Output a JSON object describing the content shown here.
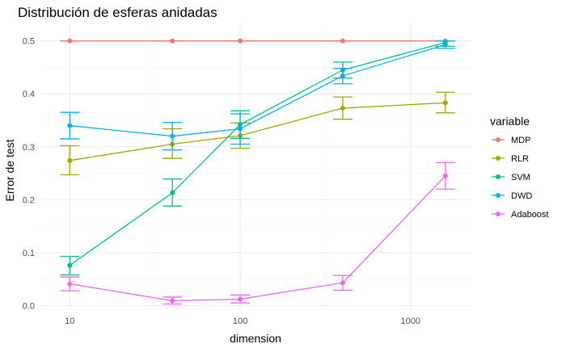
{
  "chart_data": {
    "type": "line",
    "title": "Distribución de esferas anidadas",
    "xlabel": "dimension",
    "ylabel": "Error de test",
    "x_scale": "log10",
    "xlim": [
      6.8,
      2300
    ],
    "ylim": [
      -0.01,
      0.53
    ],
    "x_ticks": [
      10,
      100,
      1000
    ],
    "x_tick_labels": [
      "10",
      "100",
      "1000"
    ],
    "y_ticks": [
      0.0,
      0.1,
      0.2,
      0.3,
      0.4,
      0.5
    ],
    "y_tick_labels": [
      "0.0",
      "0.1",
      "0.2",
      "0.3",
      "0.4",
      "0.5"
    ],
    "grid": true,
    "legend": {
      "title": "variable",
      "position": "right"
    },
    "x": [
      10,
      40,
      100,
      400,
      1600
    ],
    "series": [
      {
        "name": "MDP",
        "color": "#F8766D",
        "values": [
          0.5,
          0.5,
          0.5,
          0.5,
          0.5
        ],
        "err_low": [
          0.5,
          0.5,
          0.5,
          0.5,
          0.5
        ],
        "err_high": [
          0.5,
          0.5,
          0.5,
          0.5,
          0.5
        ]
      },
      {
        "name": "RLR",
        "color": "#A3A500",
        "values": [
          0.274,
          0.305,
          0.321,
          0.373,
          0.383
        ],
        "err_low": [
          0.247,
          0.278,
          0.297,
          0.352,
          0.364
        ],
        "err_high": [
          0.302,
          0.334,
          0.345,
          0.394,
          0.403
        ]
      },
      {
        "name": "SVM",
        "color": "#00BF7D",
        "values": [
          0.076,
          0.213,
          0.342,
          0.445,
          0.497
        ],
        "err_low": [
          0.058,
          0.188,
          0.316,
          0.43,
          0.49
        ],
        "err_high": [
          0.093,
          0.239,
          0.368,
          0.46,
          0.5
        ]
      },
      {
        "name": "DWD",
        "color": "#00B0F6",
        "values": [
          0.34,
          0.32,
          0.334,
          0.434,
          0.493
        ],
        "err_low": [
          0.315,
          0.294,
          0.305,
          0.419,
          0.486
        ],
        "err_high": [
          0.365,
          0.346,
          0.362,
          0.448,
          0.5
        ]
      },
      {
        "name": "Adaboost",
        "color": "#E76BF3",
        "values": [
          0.041,
          0.009,
          0.012,
          0.043,
          0.245
        ],
        "err_low": [
          0.028,
          0.003,
          0.005,
          0.029,
          0.22
        ],
        "err_high": [
          0.054,
          0.016,
          0.02,
          0.057,
          0.27
        ]
      }
    ]
  }
}
